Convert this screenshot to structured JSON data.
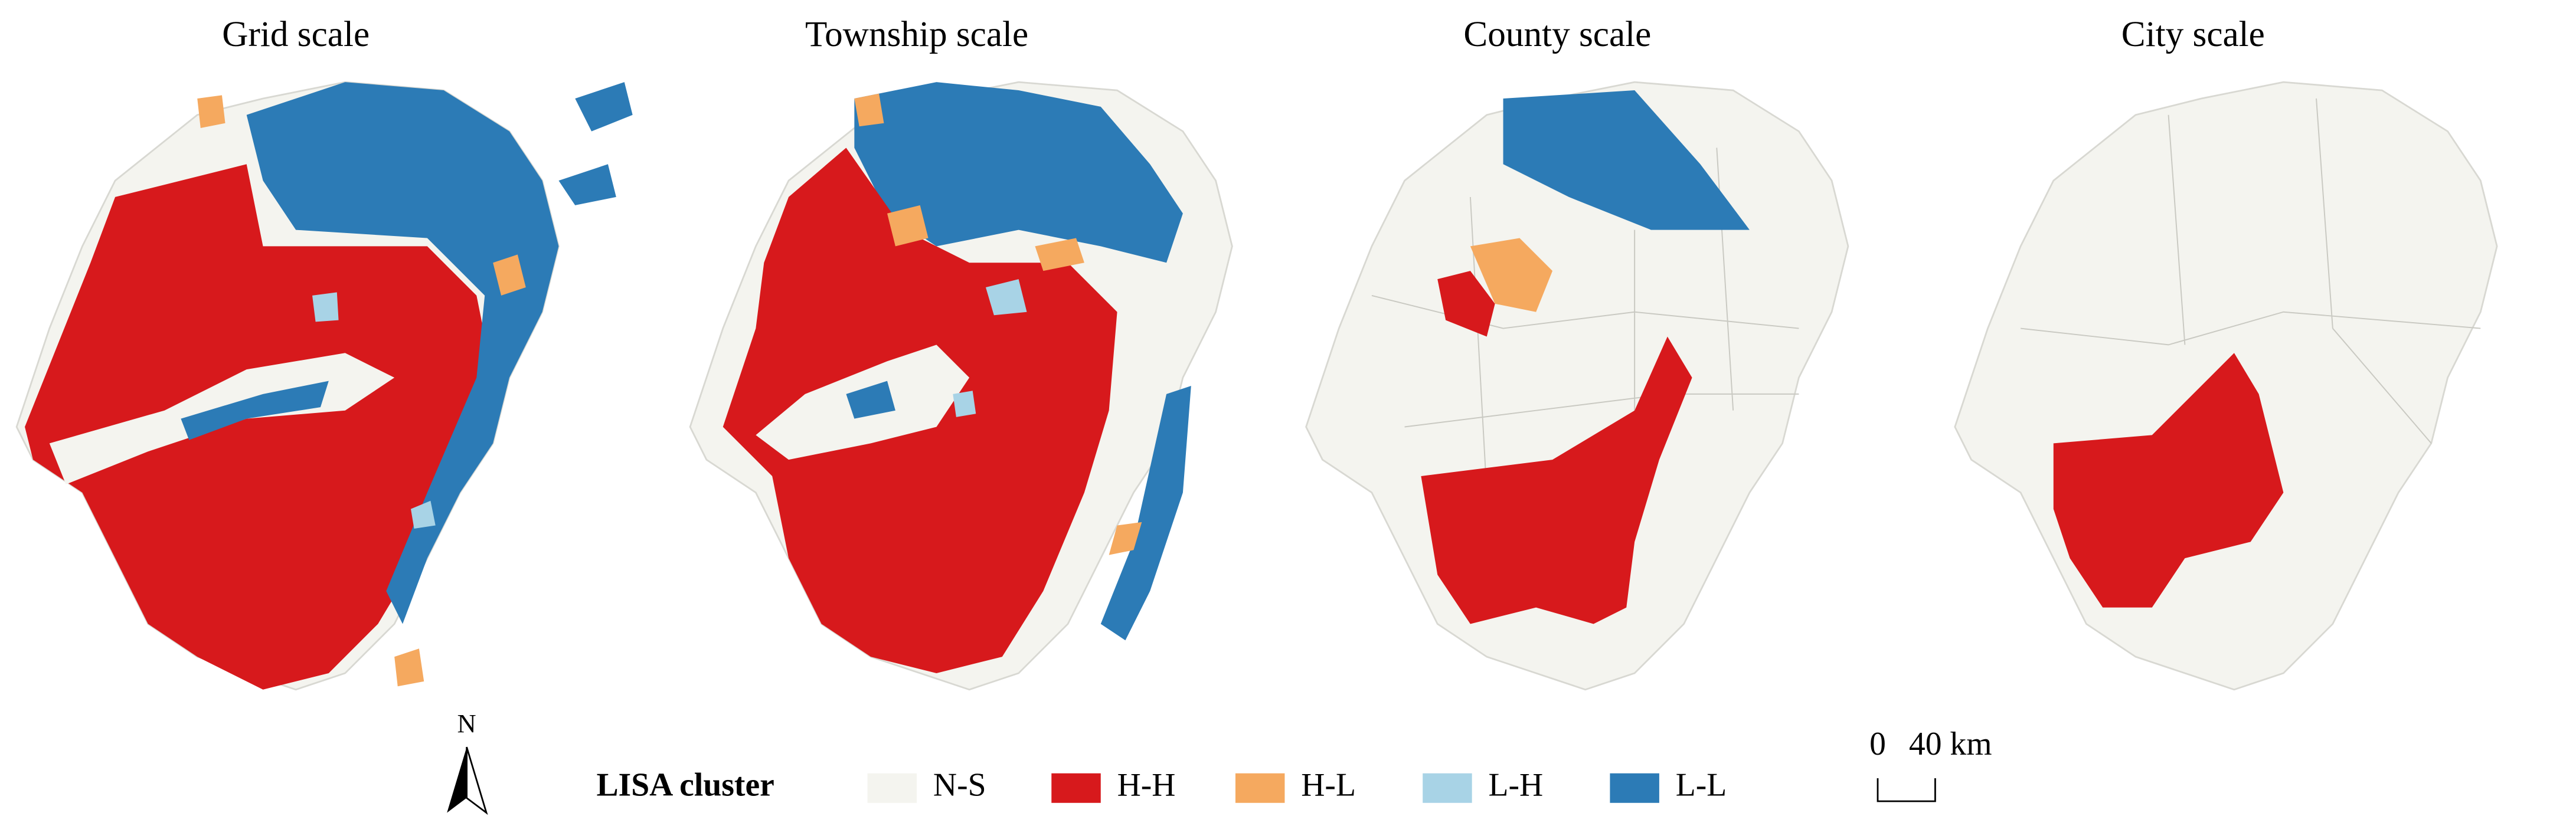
{
  "panels": [
    {
      "title": "Grid scale"
    },
    {
      "title": "Township scale"
    },
    {
      "title": "County scale"
    },
    {
      "title": "City scale"
    }
  ],
  "legend": {
    "title": "LISA cluster",
    "items": [
      {
        "label": "N-S",
        "color": "#f4f4ef"
      },
      {
        "label": "H-H",
        "color": "#d7191c"
      },
      {
        "label": "H-L",
        "color": "#f5a95f"
      },
      {
        "label": "L-H",
        "color": "#a8d3e6"
      },
      {
        "label": "L-L",
        "color": "#2c7bb6"
      }
    ]
  },
  "scale_bar": {
    "start": "0",
    "end": "40 km"
  },
  "north_arrow": "N"
}
